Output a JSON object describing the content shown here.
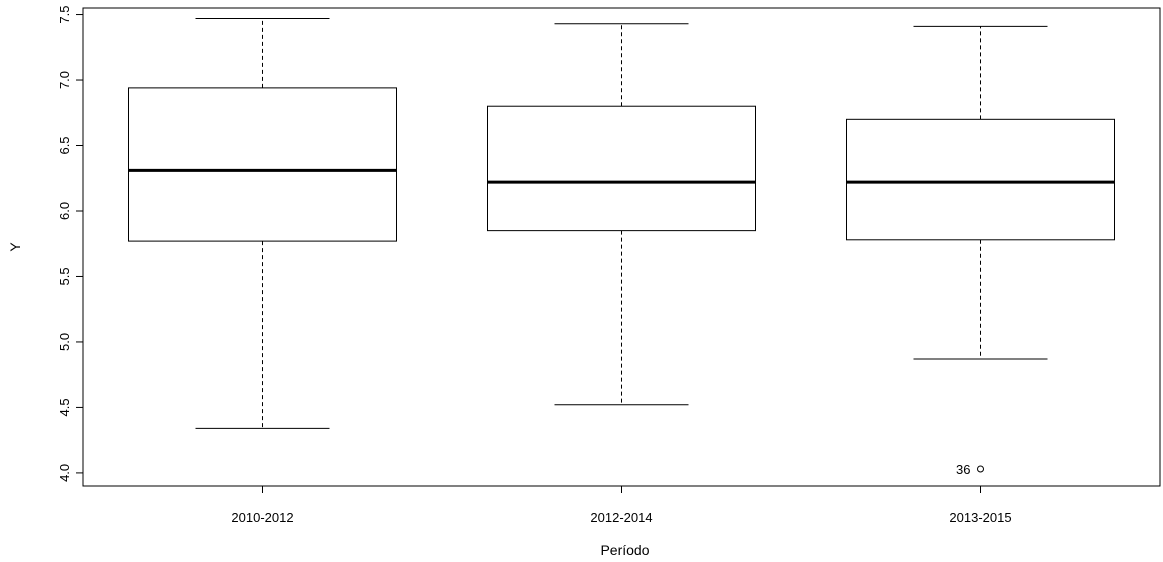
{
  "chart_data": {
    "type": "boxplot",
    "xlabel": "Período",
    "ylabel": "Y",
    "ylim": [
      3.9,
      7.55
    ],
    "yticks": [
      "4.0",
      "4.5",
      "5.0",
      "5.5",
      "6.0",
      "6.5",
      "7.0",
      "7.5"
    ],
    "grid": false,
    "categories": [
      "2010-2012",
      "2012-2014",
      "2013-2015"
    ],
    "boxes": [
      {
        "category": "2010-2012",
        "min": 4.34,
        "q1": 5.77,
        "median": 6.31,
        "q3": 6.94,
        "max": 7.47,
        "outliers": []
      },
      {
        "category": "2012-2014",
        "min": 4.52,
        "q1": 5.85,
        "median": 6.22,
        "q3": 6.8,
        "max": 7.43,
        "outliers": []
      },
      {
        "category": "2013-2015",
        "min": 4.87,
        "q1": 5.78,
        "median": 6.22,
        "q3": 6.7,
        "max": 7.41,
        "outliers": [
          {
            "value": 4.03,
            "label": "36"
          }
        ]
      }
    ]
  }
}
